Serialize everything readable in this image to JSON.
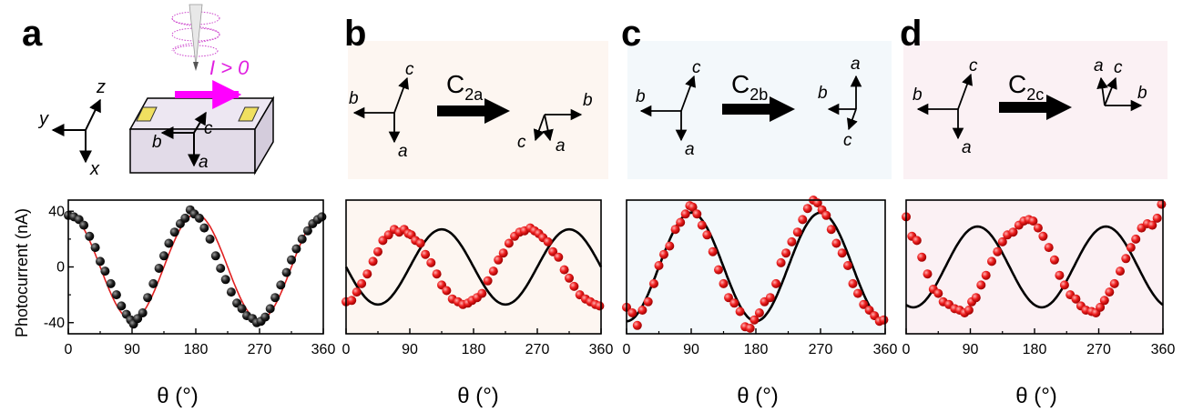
{
  "panels": [
    {
      "label": "a",
      "ylabel": "Photocurrent (nA)",
      "xlabel": "θ (°)"
    },
    {
      "label": "b",
      "xlabel": "θ (°)",
      "operation": "C",
      "operation_sub": "2a"
    },
    {
      "label": "c",
      "xlabel": "θ (°)",
      "operation": "C",
      "operation_sub": "2b"
    },
    {
      "label": "d",
      "xlabel": "θ (°)",
      "operation": "C",
      "operation_sub": "2c"
    }
  ],
  "schematic": {
    "current_label": "I > 0",
    "lab_axes": {
      "x": "x",
      "y": "y",
      "z": "z"
    },
    "crystal_axes": {
      "a": "a",
      "b": "b",
      "c": "c"
    }
  },
  "colors": {
    "dots_a": "#1a1a1a",
    "fit_a": "#e02020",
    "dots_bcd": "#e81818",
    "fit_bcd": "#000000",
    "bg_b": "#fdf6f1",
    "bg_c": "#f3f8fb",
    "bg_d": "#fbf1f4",
    "current": "#ff00ff",
    "contact": "#f0e060",
    "slab": "#e8e2ec"
  },
  "chart_data": [
    {
      "type": "scatter",
      "xlabel": "θ (°)",
      "ylabel": "Photocurrent (nA)",
      "xlim": [
        0,
        360
      ],
      "ylim": [
        -48,
        48
      ],
      "xticks": [
        0,
        90,
        180,
        270,
        360
      ],
      "yticks": [
        -40,
        0,
        40
      ],
      "fit": {
        "amplitude": 38,
        "period": 180,
        "phase": 0,
        "offset": 0
      },
      "x": [
        0,
        8,
        15,
        22,
        30,
        38,
        45,
        52,
        60,
        68,
        75,
        82,
        88,
        92,
        98,
        105,
        112,
        120,
        128,
        135,
        142,
        150,
        158,
        165,
        172,
        178,
        185,
        192,
        200,
        208,
        215,
        222,
        230,
        238,
        245,
        252,
        260,
        266,
        272,
        278,
        285,
        292,
        300,
        308,
        315,
        322,
        330,
        338,
        345,
        352,
        358
      ],
      "y": [
        37,
        36,
        34,
        30,
        22,
        14,
        4,
        -3,
        -12,
        -20,
        -28,
        -34,
        -38,
        -41,
        -37,
        -33,
        -22,
        -12,
        -1,
        8,
        17,
        25,
        31,
        35,
        41,
        38,
        35,
        28,
        20,
        8,
        -1,
        -9,
        -18,
        -26,
        -30,
        -35,
        -37,
        -40,
        -39,
        -36,
        -30,
        -22,
        -13,
        -4,
        5,
        13,
        20,
        26,
        31,
        34,
        36
      ]
    },
    {
      "type": "scatter",
      "xlabel": "θ (°)",
      "xlim": [
        0,
        360
      ],
      "ylim": [
        -48,
        48
      ],
      "xticks": [
        0,
        90,
        180,
        270,
        360
      ],
      "fit": {
        "amplitude": 27,
        "period": 180,
        "phase": 315,
        "offset": 0
      },
      "x": [
        0,
        8,
        15,
        22,
        30,
        38,
        45,
        52,
        60,
        68,
        75,
        82,
        88,
        92,
        98,
        105,
        112,
        120,
        128,
        135,
        142,
        150,
        158,
        165,
        172,
        178,
        185,
        192,
        200,
        208,
        215,
        222,
        230,
        238,
        245,
        252,
        260,
        266,
        272,
        278,
        285,
        292,
        300,
        308,
        315,
        322,
        330,
        338,
        345,
        352,
        358
      ],
      "y": [
        -25,
        -24,
        -18,
        -12,
        -5,
        4,
        11,
        19,
        23,
        27,
        25,
        27,
        24,
        23,
        19,
        17,
        9,
        3,
        -5,
        -13,
        -17,
        -23,
        -25,
        -27,
        -26,
        -24,
        -22,
        -19,
        -10,
        -3,
        5,
        10,
        17,
        22,
        25,
        26,
        28,
        26,
        24,
        21,
        18,
        11,
        7,
        -2,
        -8,
        -14,
        -20,
        -23,
        -25,
        -27,
        -28
      ]
    },
    {
      "type": "scatter",
      "xlabel": "θ (°)",
      "xlim": [
        0,
        360
      ],
      "ylim": [
        -48,
        48
      ],
      "xticks": [
        0,
        90,
        180,
        270,
        360
      ],
      "fit": {
        "amplitude": 39,
        "period": 180,
        "phase": 270,
        "offset": 0
      },
      "x": [
        0,
        8,
        15,
        22,
        30,
        38,
        45,
        52,
        60,
        68,
        75,
        82,
        88,
        92,
        98,
        105,
        112,
        120,
        128,
        135,
        142,
        150,
        158,
        165,
        172,
        178,
        185,
        192,
        200,
        208,
        215,
        222,
        230,
        238,
        245,
        252,
        260,
        266,
        272,
        278,
        285,
        292,
        300,
        308,
        315,
        322,
        330,
        338,
        345,
        352,
        358
      ],
      "y": [
        -29,
        -33,
        -42,
        -31,
        -25,
        -12,
        1,
        9,
        15,
        27,
        32,
        38,
        44,
        43,
        38,
        30,
        23,
        11,
        -2,
        -12,
        -22,
        -26,
        -32,
        -43,
        -44,
        -38,
        -33,
        -25,
        -22,
        -12,
        3,
        10,
        18,
        25,
        34,
        42,
        48,
        46,
        41,
        37,
        27,
        17,
        10,
        1,
        -12,
        -19,
        -27,
        -31,
        -35,
        -39,
        -38
      ]
    },
    {
      "type": "scatter",
      "xlabel": "θ (°)",
      "xlim": [
        0,
        360
      ],
      "ylim": [
        -48,
        48
      ],
      "xticks": [
        0,
        90,
        180,
        270,
        360
      ],
      "fit": {
        "amplitude": 29,
        "period": 180,
        "phase": 100,
        "offset": 0
      },
      "x": [
        0,
        8,
        15,
        22,
        30,
        38,
        45,
        52,
        60,
        68,
        75,
        82,
        88,
        92,
        98,
        105,
        112,
        120,
        128,
        135,
        142,
        150,
        158,
        165,
        172,
        178,
        185,
        192,
        200,
        208,
        215,
        222,
        230,
        238,
        245,
        252,
        260,
        266,
        272,
        278,
        285,
        292,
        300,
        308,
        315,
        322,
        330,
        338,
        345,
        352,
        358
      ],
      "y": [
        36,
        22,
        19,
        7,
        -5,
        -16,
        -19,
        -25,
        -27,
        -30,
        -31,
        -33,
        -31,
        -25,
        -22,
        -13,
        -6,
        4,
        11,
        18,
        23,
        25,
        30,
        33,
        34,
        33,
        28,
        22,
        14,
        5,
        -6,
        -13,
        -20,
        -23,
        -28,
        -31,
        -32,
        -33,
        -29,
        -24,
        -18,
        -12,
        -3,
        6,
        14,
        20,
        28,
        31,
        30,
        35,
        45
      ]
    }
  ]
}
